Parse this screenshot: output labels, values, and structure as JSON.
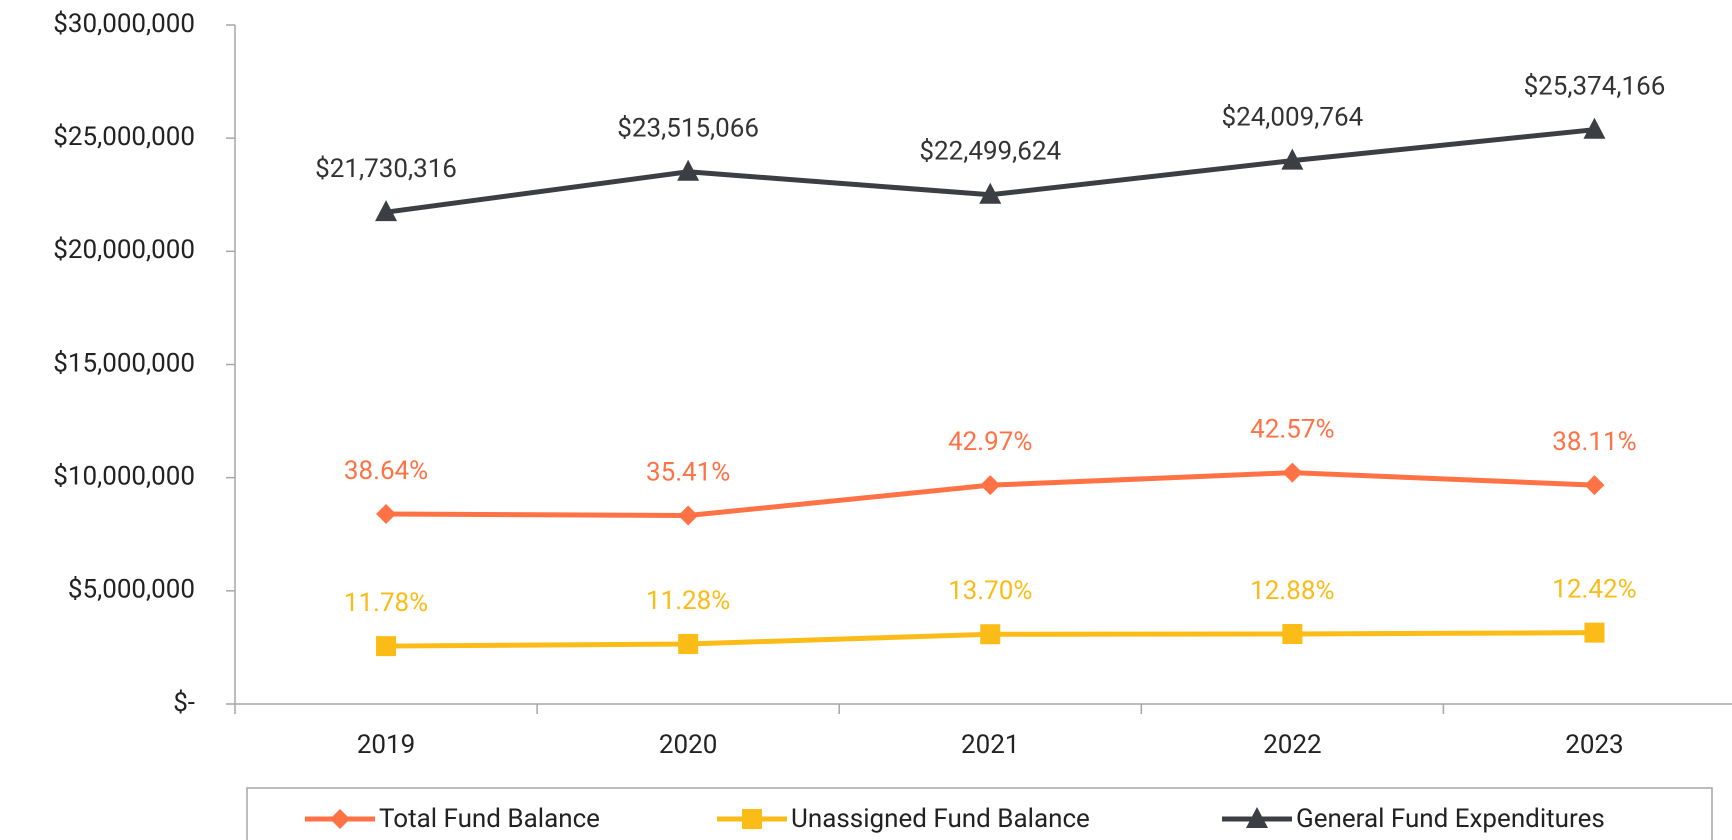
{
  "chart_data": {
    "type": "line",
    "categories": [
      "2019",
      "2020",
      "2021",
      "2022",
      "2023"
    ],
    "series": [
      {
        "name": "Total Fund Balance",
        "color": "#ff7245",
        "marker": "diamond",
        "values": [
          8396594,
          8326685,
          9668088,
          10220956,
          9670095
        ],
        "labels": [
          "38.64%",
          "35.41%",
          "42.97%",
          "42.57%",
          "38.11%"
        ]
      },
      {
        "name": "Unassigned Fund Balance",
        "color": "#fbbc18",
        "marker": "square",
        "values": [
          2559831,
          2652500,
          3082448,
          3092458,
          3151471
        ],
        "labels": [
          "11.78%",
          "11.28%",
          "13.70%",
          "12.88%",
          "12.42%"
        ]
      },
      {
        "name": "General Fund Expenditures",
        "color": "#3b3f44",
        "marker": "triangle",
        "values": [
          21730316,
          23515066,
          22499624,
          24009764,
          25374166
        ],
        "value_labels": [
          "$21,730,316",
          "$23,515,066",
          "$22,499,624",
          "$24,009,764",
          "$25,374,166"
        ]
      }
    ],
    "ylim": [
      0,
      30000000
    ],
    "yticks": [
      {
        "value": 0,
        "label": "$-"
      },
      {
        "value": 5000000,
        "label": "$5,000,000"
      },
      {
        "value": 10000000,
        "label": "$10,000,000"
      },
      {
        "value": 15000000,
        "label": "$15,000,000"
      },
      {
        "value": 20000000,
        "label": "$20,000,000"
      },
      {
        "value": 25000000,
        "label": "$25,000,000"
      },
      {
        "value": 30000000,
        "label": "$30,000,000"
      }
    ],
    "grid": false,
    "legend": "bottom"
  }
}
